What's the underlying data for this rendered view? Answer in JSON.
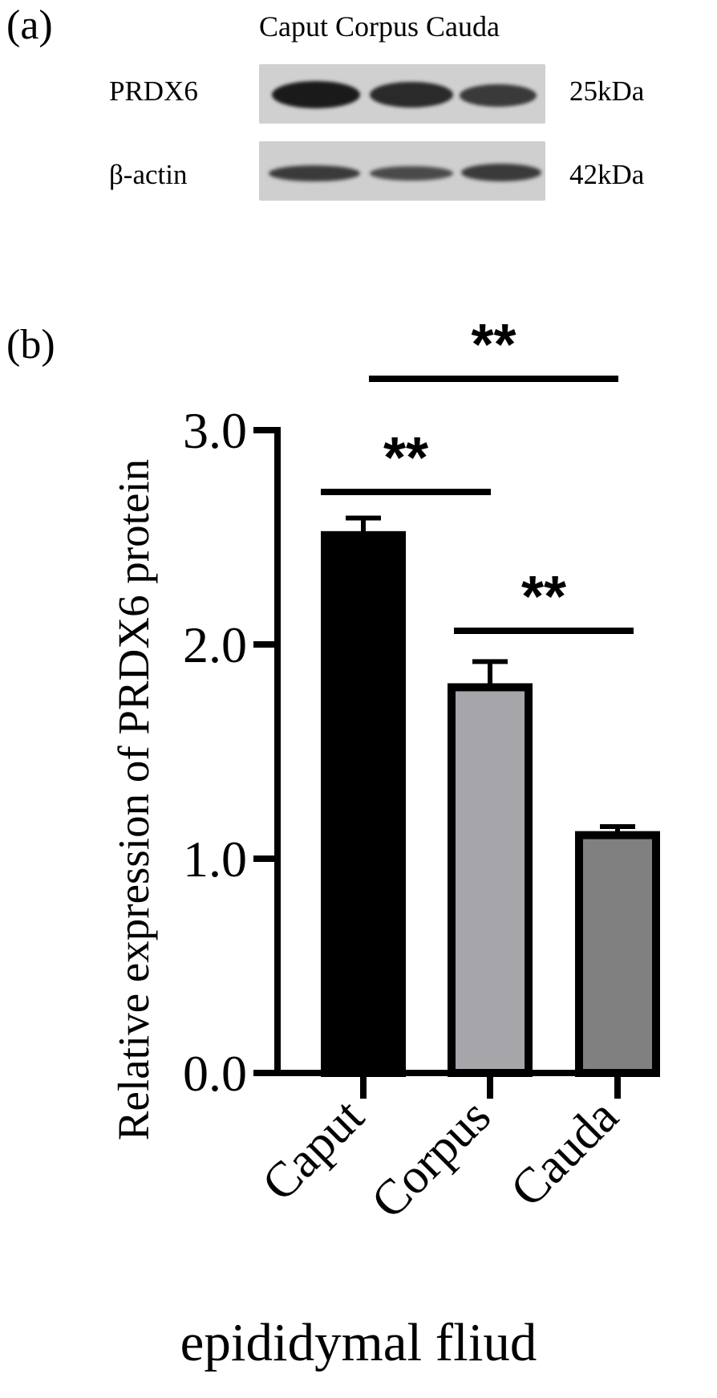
{
  "panel_a": {
    "label": "(a)",
    "lane_header": "Caput Corpus Cauda",
    "rows": [
      {
        "protein": "PRDX6",
        "mw": "25kDa",
        "band_intensity": [
          0.95,
          0.85,
          0.7
        ]
      },
      {
        "protein": "β-actin",
        "mw": "42kDa",
        "band_intensity": [
          0.75,
          0.65,
          0.75
        ]
      }
    ]
  },
  "panel_b": {
    "label": "(b)"
  },
  "colors": {
    "caput": "#000000",
    "corpus": "#a6a6aa",
    "cauda": "#808080",
    "axis": "#000000"
  },
  "chart_data": {
    "type": "bar",
    "categories": [
      "Caput",
      "Corpus",
      "Cauda"
    ],
    "values": [
      2.51,
      1.8,
      1.11
    ],
    "errors": [
      0.08,
      0.12,
      0.04
    ],
    "title": "",
    "xlabel": "epididymal fliud",
    "ylabel": "Relative expression of PRDX6 protein",
    "ylim": [
      0,
      3.0
    ],
    "yticks": [
      "0.0",
      "1.0",
      "2.0",
      "3.0"
    ],
    "grid": false,
    "significance": [
      {
        "from": "Caput",
        "to": "Corpus",
        "text": "**"
      },
      {
        "from": "Corpus",
        "to": "Cauda",
        "text": "**"
      },
      {
        "from": "Caput",
        "to": "Cauda",
        "text": "**"
      }
    ]
  }
}
